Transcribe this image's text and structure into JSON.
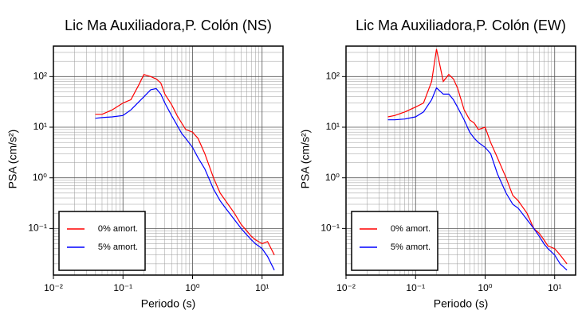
{
  "chart_data": [
    {
      "type": "line",
      "title": "Lic Ma Auxiliadora,P. Colón (NS)",
      "xlabel": "Periodo (s)",
      "ylabel": "PSA (cm/s²)",
      "xscale": "log",
      "yscale": "log",
      "grid": true,
      "legend": "lower left",
      "xlim": [
        0.01,
        20
      ],
      "ylim": [
        0.012,
        400
      ],
      "xticks": [
        {
          "value": 0.01,
          "label": "10⁻²"
        },
        {
          "value": 0.1,
          "label": "10⁻¹"
        },
        {
          "value": 1,
          "label": "10⁰"
        },
        {
          "value": 10,
          "label": "10¹"
        }
      ],
      "yticks": [
        {
          "value": 0.1,
          "label": "10⁻¹"
        },
        {
          "value": 1,
          "label": "10⁰"
        },
        {
          "value": 10,
          "label": "10¹"
        },
        {
          "value": 100,
          "label": "10²"
        }
      ],
      "x": [
        0.04,
        0.05,
        0.07,
        0.1,
        0.13,
        0.17,
        0.2,
        0.25,
        0.3,
        0.35,
        0.4,
        0.5,
        0.6,
        0.7,
        0.8,
        1.0,
        1.2,
        1.5,
        2,
        2.5,
        3,
        4,
        5,
        6,
        7,
        8,
        10,
        12,
        15
      ],
      "series": [
        {
          "name": "0% amort.",
          "color": "#ff0000",
          "values": [
            18,
            18,
            22,
            30,
            35,
            70,
            110,
            100,
            90,
            75,
            45,
            28,
            17,
            12,
            9,
            8,
            6,
            3,
            1,
            0.5,
            0.35,
            0.2,
            0.12,
            0.09,
            0.07,
            0.06,
            0.05,
            0.055,
            0.03
          ]
        },
        {
          "name": "5% amort.",
          "color": "#0000ff",
          "values": [
            15,
            15.5,
            16,
            17,
            22,
            32,
            40,
            55,
            58,
            45,
            30,
            17,
            11,
            7.5,
            6,
            4,
            2.5,
            1.5,
            0.6,
            0.35,
            0.25,
            0.15,
            0.1,
            0.075,
            0.06,
            0.05,
            0.04,
            0.028,
            0.015
          ]
        }
      ]
    },
    {
      "type": "line",
      "title": "Lic Ma Auxiliadora,P. Colón (EW)",
      "xlabel": "Periodo (s)",
      "ylabel": "PSA (cm/s²)",
      "xscale": "log",
      "yscale": "log",
      "grid": true,
      "legend": "lower left",
      "xlim": [
        0.01,
        20
      ],
      "ylim": [
        0.012,
        400
      ],
      "xticks": [
        {
          "value": 0.01,
          "label": "10⁻²"
        },
        {
          "value": 0.1,
          "label": "10⁻¹"
        },
        {
          "value": 1,
          "label": "10⁰"
        },
        {
          "value": 10,
          "label": "10¹"
        }
      ],
      "yticks": [
        {
          "value": 0.1,
          "label": "10⁻¹"
        },
        {
          "value": 1,
          "label": "10⁰"
        },
        {
          "value": 10,
          "label": "10¹"
        },
        {
          "value": 100,
          "label": "10²"
        }
      ],
      "x": [
        0.04,
        0.05,
        0.07,
        0.1,
        0.13,
        0.17,
        0.2,
        0.25,
        0.3,
        0.35,
        0.4,
        0.5,
        0.6,
        0.7,
        0.8,
        1.0,
        1.2,
        1.5,
        2,
        2.5,
        3,
        4,
        5,
        6,
        7,
        8,
        10,
        12,
        15
      ],
      "series": [
        {
          "name": "0% amort.",
          "color": "#ff0000",
          "values": [
            16,
            17,
            20,
            25,
            30,
            80,
            350,
            80,
            110,
            90,
            60,
            22,
            14,
            12,
            9,
            10,
            5,
            2.5,
            1,
            0.45,
            0.35,
            0.2,
            0.1,
            0.08,
            0.06,
            0.045,
            0.04,
            0.03,
            0.02
          ]
        },
        {
          "name": "5% amort.",
          "color": "#0000ff",
          "values": [
            14,
            14,
            14.5,
            16,
            20,
            35,
            60,
            45,
            45,
            35,
            25,
            14,
            8,
            6,
            5,
            4,
            3,
            1.2,
            0.5,
            0.3,
            0.25,
            0.15,
            0.1,
            0.07,
            0.05,
            0.04,
            0.03,
            0.02,
            0.015
          ]
        }
      ]
    }
  ]
}
